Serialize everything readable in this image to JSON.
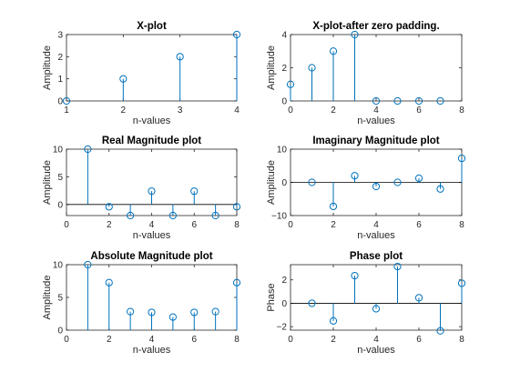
{
  "stem_color": "#0072BD",
  "axis_color": "#262626",
  "chart_data": [
    {
      "type": "stem",
      "title": "X-plot",
      "xlabel": "n-values",
      "ylabel": "Amplitude",
      "xlim": [
        1,
        4
      ],
      "ylim": [
        0,
        3
      ],
      "xticks": [
        1,
        2,
        3,
        4
      ],
      "yticks": [
        0,
        1,
        2,
        3
      ],
      "x": [
        1,
        2,
        3,
        4
      ],
      "y": [
        0,
        1,
        2,
        3
      ]
    },
    {
      "type": "stem",
      "title": "X-plot-after zero padding.",
      "xlabel": "n-values",
      "ylabel": "Amplitude",
      "xlim": [
        0,
        8
      ],
      "ylim": [
        0,
        4
      ],
      "xticks": [
        0,
        2,
        4,
        6,
        8
      ],
      "yticks": [
        0,
        2,
        4
      ],
      "x": [
        0,
        1,
        2,
        3,
        4,
        5,
        6,
        7
      ],
      "y": [
        1,
        2,
        3,
        4,
        0,
        0,
        0,
        0
      ]
    },
    {
      "type": "stem",
      "title": "Real Magnitude plot",
      "xlabel": "n-values",
      "ylabel": "Amplitude",
      "xlim": [
        0,
        8
      ],
      "ylim": [
        -2,
        10
      ],
      "xticks": [
        0,
        2,
        4,
        6,
        8
      ],
      "yticks": [
        0,
        5,
        10
      ],
      "x": [
        1,
        2,
        3,
        4,
        5,
        6,
        7,
        8
      ],
      "y": [
        10,
        -0.41,
        -2,
        2.41,
        -2,
        2.41,
        -2,
        -0.41
      ]
    },
    {
      "type": "stem",
      "title": "Imaginary Magnitude plot",
      "xlabel": "n-values",
      "ylabel": "Amplitude",
      "xlim": [
        0,
        8
      ],
      "ylim": [
        -10,
        10
      ],
      "xticks": [
        0,
        2,
        4,
        6,
        8
      ],
      "yticks": [
        -10,
        0,
        10
      ],
      "x": [
        1,
        2,
        3,
        4,
        5,
        6,
        7,
        8
      ],
      "y": [
        0,
        -7.24,
        2,
        -1.24,
        0,
        1.24,
        -2,
        7.24
      ]
    },
    {
      "type": "stem",
      "title": "Absolute Magnitude plot",
      "xlabel": "n-values",
      "ylabel": "Amplitude",
      "xlim": [
        0,
        8
      ],
      "ylim": [
        0,
        10
      ],
      "xticks": [
        0,
        2,
        4,
        6,
        8
      ],
      "yticks": [
        0,
        5,
        10
      ],
      "x": [
        1,
        2,
        3,
        4,
        5,
        6,
        7,
        8
      ],
      "y": [
        10,
        7.26,
        2.83,
        2.72,
        2,
        2.72,
        2.83,
        7.26
      ]
    },
    {
      "type": "stem",
      "title": "Phase plot",
      "xlabel": "n-values",
      "ylabel": "Phase",
      "xlim": [
        0,
        8
      ],
      "ylim": [
        -2.3,
        3.3
      ],
      "xticks": [
        0,
        2,
        4,
        6,
        8
      ],
      "yticks": [
        -2,
        0,
        2
      ],
      "x": [
        1,
        2,
        3,
        4,
        5,
        6,
        7,
        8
      ],
      "y": [
        0,
        -1.51,
        2.36,
        -0.47,
        3.14,
        0.47,
        -2.36,
        1.71
      ]
    }
  ]
}
